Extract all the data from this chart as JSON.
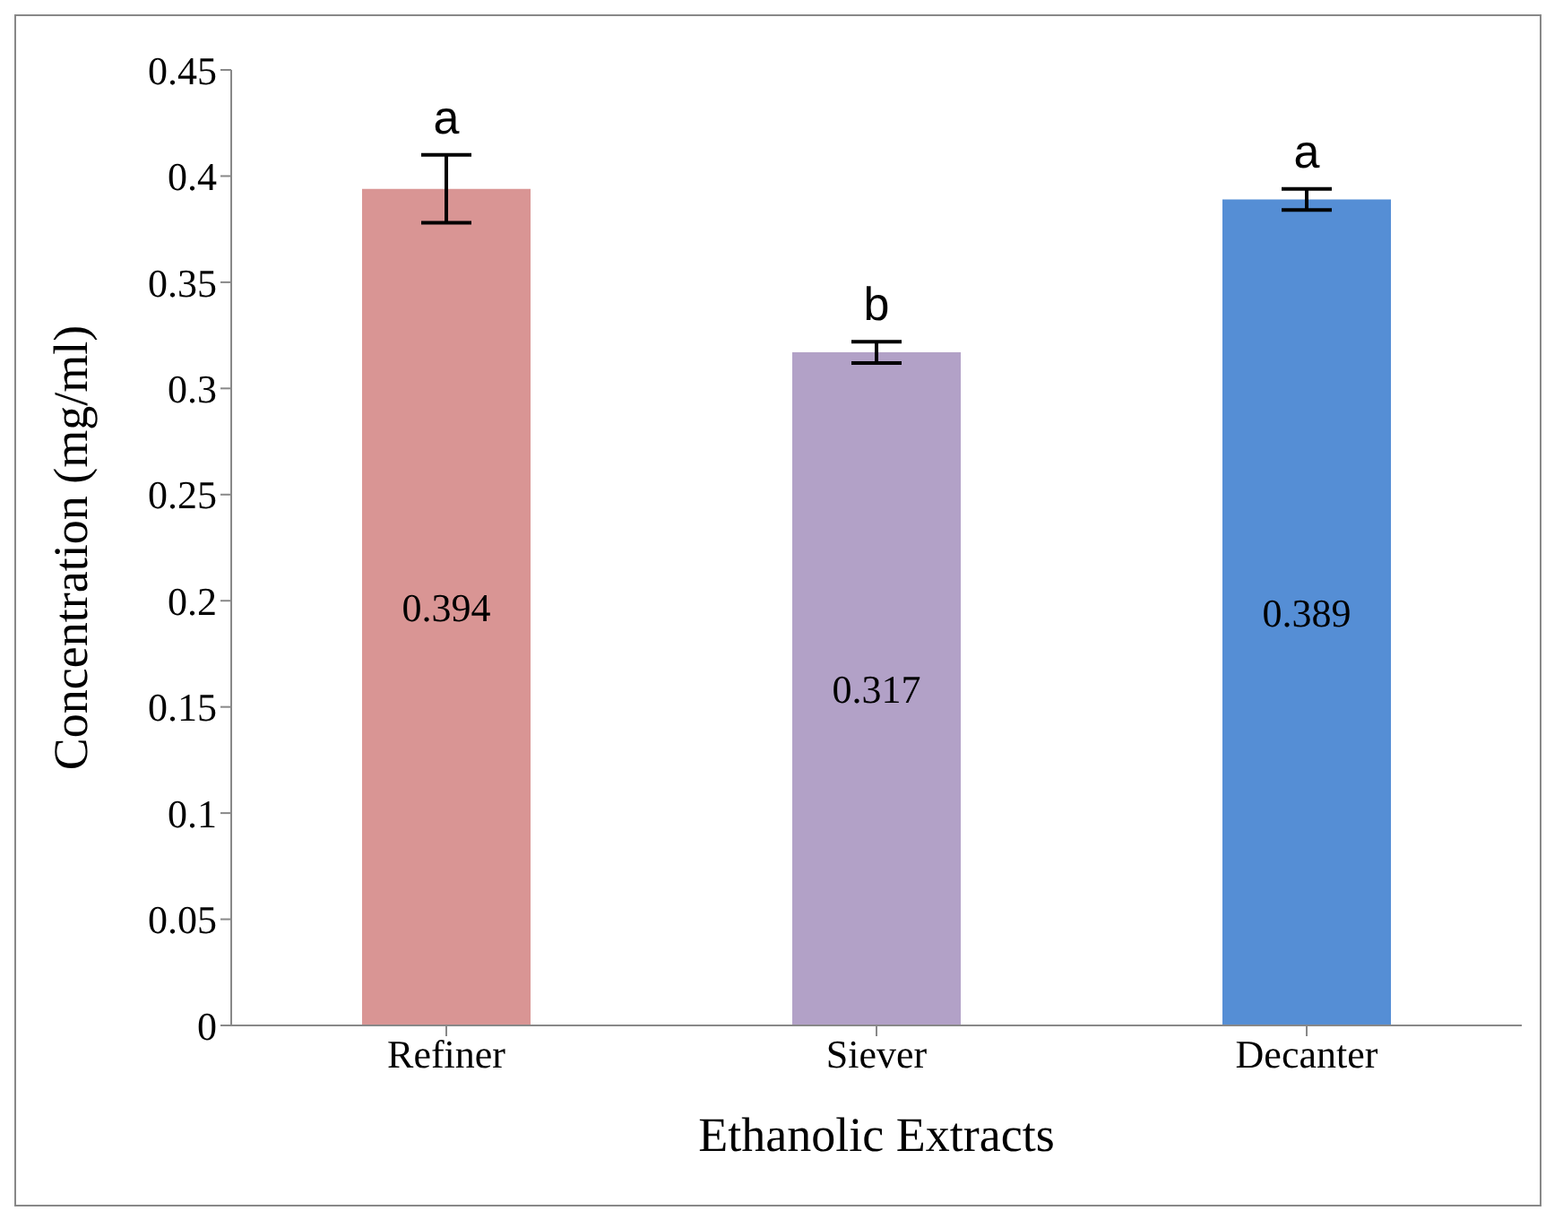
{
  "chart_data": {
    "type": "bar",
    "xlabel": "Ethanolic Extracts",
    "ylabel": "Concentration (mg/ml)",
    "categories": [
      "Refiner",
      "Siever",
      "Decanter"
    ],
    "values": [
      0.394,
      0.317,
      0.389
    ],
    "colors": [
      "#d99594",
      "#b2a1c7",
      "#558ed5"
    ],
    "errors": [
      0.016,
      0.005,
      0.005
    ],
    "data_labels": true,
    "ylim": [
      0,
      0.45
    ],
    "yticks": [
      0,
      0.05,
      0.1,
      0.15,
      0.2,
      0.25,
      0.3,
      0.35,
      0.4,
      0.45
    ],
    "grid": false,
    "annotations": [
      {
        "text": "a",
        "x": "Refiner",
        "y": 0.41
      },
      {
        "text": "b",
        "x": "Siever",
        "y": 0.322
      },
      {
        "text": "a",
        "x": "Decanter",
        "y": 0.394
      }
    ]
  }
}
